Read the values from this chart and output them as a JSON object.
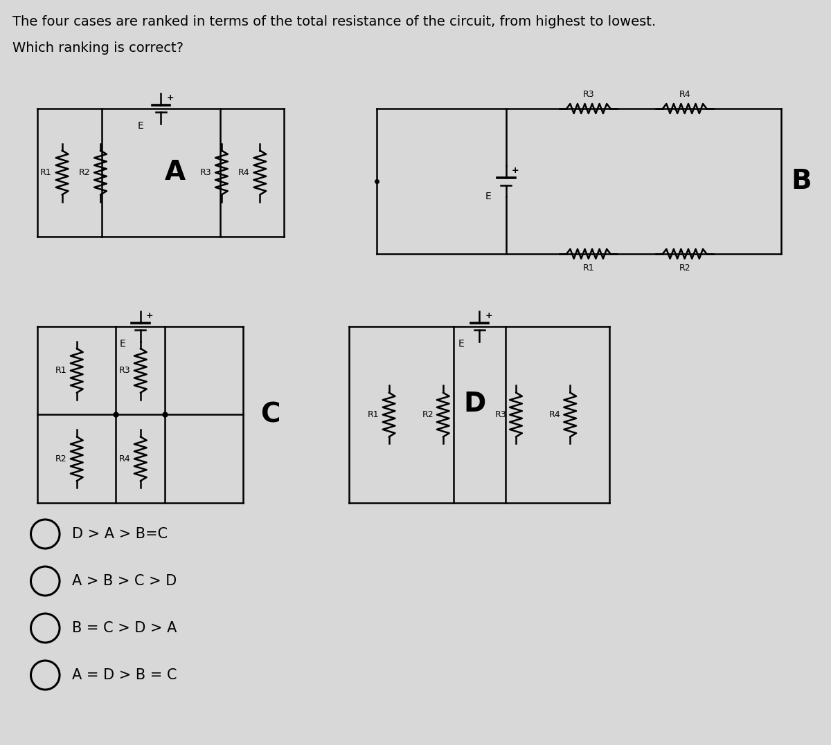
{
  "title_line1": "The four cases are ranked in terms of the total resistance of the circuit, from highest to lowest.",
  "title_line2": "Which ranking is correct?",
  "bg_color": "#d8d8d8",
  "options": [
    "D > A > B=C",
    "A > B > C > D",
    "B = C > D > A",
    "A = D > B = C"
  ],
  "circuit_A_label": "A",
  "circuit_B_label": "B",
  "circuit_C_label": "C",
  "circuit_D_label": "D",
  "line_color": "#000000",
  "text_color": "#000000",
  "font_size_title": 14,
  "font_size_label": 28,
  "font_size_option": 15,
  "font_size_component": 9,
  "lw": 1.8
}
